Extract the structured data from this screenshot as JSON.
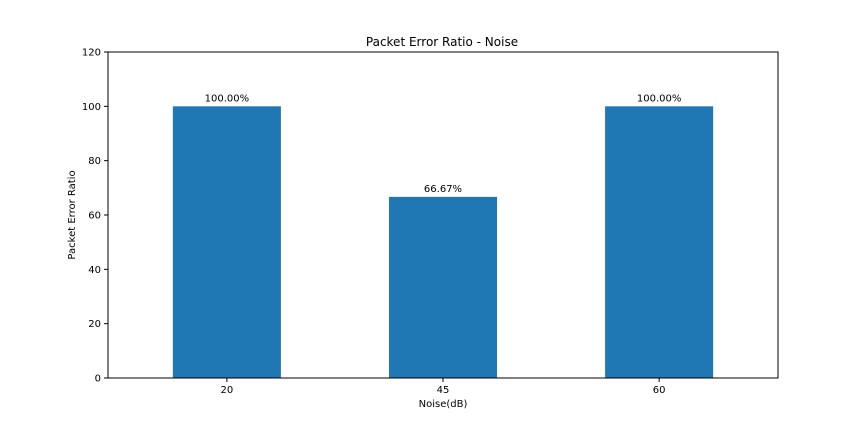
{
  "chart_data": {
    "type": "bar",
    "title": "Packet Error Ratio - Noise",
    "xlabel": "Noise(dB)",
    "ylabel": "Packet Error Ratio",
    "categories": [
      "20",
      "45",
      "60"
    ],
    "values": [
      100.0,
      66.67,
      100.0
    ],
    "data_labels": [
      "100.00%",
      "66.67%",
      "100.00%"
    ],
    "ylim": [
      0,
      120
    ],
    "yticks": [
      "0",
      "20",
      "40",
      "60",
      "80",
      "100",
      "120"
    ],
    "grid": false,
    "bar_color": "#1f77b4"
  }
}
